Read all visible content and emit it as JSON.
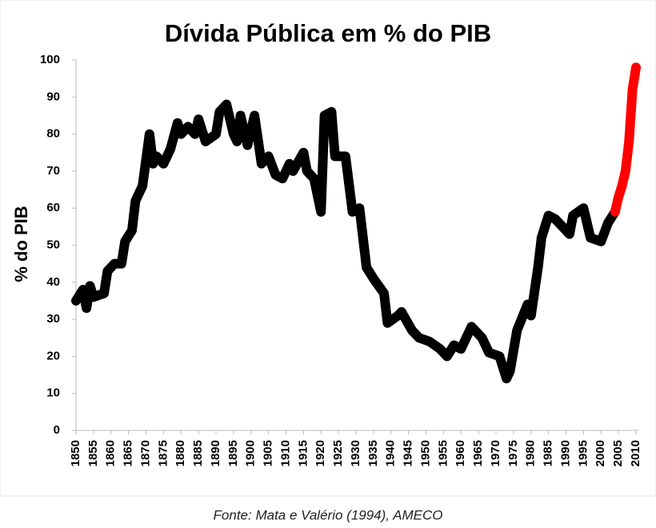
{
  "chart_data": {
    "type": "line",
    "title": "Dívida Pública em % do PIB",
    "y_label": "% do PIB",
    "source": "Fonte: Mata e Valério (1994), AMECO",
    "series": [
      {
        "name": null,
        "color": "#000000",
        "x": [
          1850,
          1852,
          1853,
          1854,
          1855,
          1858,
          1859,
          1861,
          1863,
          1864,
          1866,
          1867,
          1869,
          1871,
          1872,
          1873,
          1875,
          1877,
          1879,
          1880,
          1882,
          1884,
          1885,
          1887,
          1890,
          1891,
          1893,
          1895,
          1896,
          1897,
          1899,
          1901,
          1903,
          1905,
          1907,
          1909,
          1911,
          1912,
          1915,
          1916,
          1918,
          1920,
          1921,
          1923,
          1924,
          1927,
          1929,
          1931,
          1933,
          1935,
          1938,
          1939,
          1942,
          1943,
          1946,
          1948,
          1951,
          1954,
          1956,
          1958,
          1960,
          1963,
          1966,
          1968,
          1971,
          1973,
          1974,
          1976,
          1979,
          1980,
          1982,
          1983,
          1985,
          1987,
          1989,
          1991,
          1992,
          1995,
          1997,
          2000,
          2002,
          2004
        ],
        "values": [
          35,
          38,
          33,
          39,
          36,
          37,
          43,
          45,
          45,
          51,
          54,
          62,
          66,
          80,
          72,
          74,
          72,
          76,
          83,
          80,
          82,
          80,
          84,
          78,
          80,
          86,
          88,
          80,
          78,
          85,
          77,
          85,
          72,
          74,
          69,
          68,
          72,
          70,
          75,
          70,
          68,
          59,
          85,
          86,
          74,
          74,
          59,
          60,
          44,
          41,
          37,
          29,
          31,
          32,
          27,
          25,
          24,
          22,
          20,
          23,
          22,
          28,
          25,
          21,
          20,
          14,
          16,
          27,
          34,
          31,
          44,
          52,
          58,
          57,
          55,
          53,
          58,
          60,
          52,
          51,
          56,
          59
        ]
      },
      {
        "name": null,
        "color": "#ff0000",
        "x": [
          2004,
          2005,
          2006,
          2007,
          2008,
          2009,
          2010
        ],
        "values": [
          59,
          63,
          66,
          70,
          78,
          92,
          98
        ]
      }
    ],
    "xlim": [
      1850,
      2010
    ],
    "xticks": [
      1850,
      1855,
      1860,
      1865,
      1870,
      1875,
      1880,
      1885,
      1890,
      1895,
      1900,
      1905,
      1910,
      1915,
      1920,
      1925,
      1930,
      1935,
      1940,
      1945,
      1950,
      1955,
      1960,
      1965,
      1970,
      1975,
      1980,
      1985,
      1990,
      1995,
      2000,
      2005,
      2010
    ],
    "ylim": [
      0,
      100
    ],
    "yticks": [
      0,
      10,
      20,
      30,
      40,
      50,
      60,
      70,
      80,
      90,
      100
    ],
    "grid": false
  }
}
